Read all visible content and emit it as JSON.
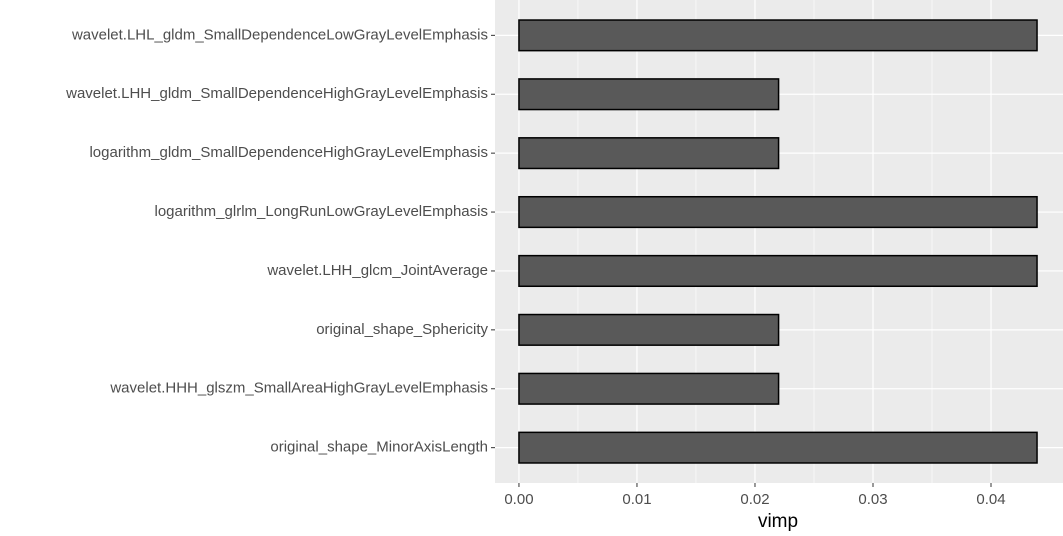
{
  "chart_data": {
    "type": "barh",
    "categories": [
      "wavelet.LHL_gldm_SmallDependenceLowGrayLevelEmphasis",
      "wavelet.LHH_gldm_SmallDependenceHighGrayLevelEmphasis",
      "logarithm_gldm_SmallDependenceHighGrayLevelEmphasis",
      "logarithm_glrlm_LongRunLowGrayLevelEmphasis",
      "wavelet.LHH_glcm_JointAverage",
      "original_shape_Sphericity",
      "wavelet.HHH_glszm_SmallAreaHighGrayLevelEmphasis",
      "original_shape_MinorAxisLength"
    ],
    "values": [
      0.0439,
      0.022,
      0.022,
      0.0439,
      0.0439,
      0.022,
      0.022,
      0.0439
    ],
    "color": "#595959",
    "x_label": "vimp",
    "xlim": [
      -0.00203,
      0.0461
    ],
    "xticks": [
      {
        "value": 0,
        "label": "0.00"
      },
      0.01,
      0.02,
      0.03,
      0.04
    ],
    "grid": true
  }
}
